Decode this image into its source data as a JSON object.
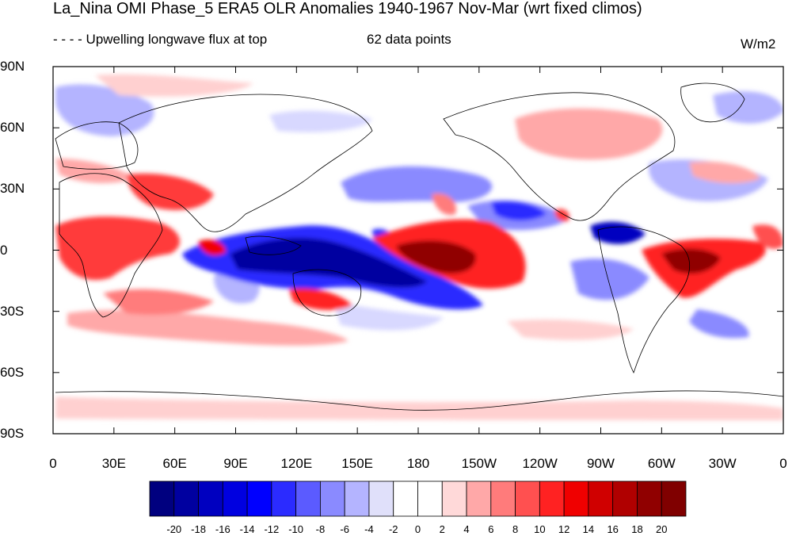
{
  "header": {
    "title": "La_Nina OMI Phase_5 ERA5 OLR Anomalies 1940-1967 Nov-Mar (wrt fixed climos)",
    "subtitle_left": "- - - - Upwelling longwave flux at top",
    "subtitle_center": "62 data points",
    "units": "W/m2"
  },
  "map": {
    "projection": "cylindrical-equidistant",
    "y_tick_labels": [
      "90N",
      "60N",
      "30N",
      "0",
      "30S",
      "60S",
      "90S"
    ],
    "x_tick_labels": [
      "0",
      "30E",
      "60E",
      "90E",
      "120E",
      "150E",
      "180",
      "150W",
      "120W",
      "90W",
      "60W",
      "30W",
      "0"
    ],
    "colors": {
      "strong_negative": "#0000a0",
      "negative": "#5b5bff",
      "weak_negative": "#d8d8ff",
      "weak_positive": "#ffd0d0",
      "positive": "#ff3a3a",
      "strong_positive": "#8b0000"
    }
  },
  "colorbar": {
    "labels": [
      "-20",
      "-18",
      "-16",
      "-14",
      "-12",
      "-10",
      "-8",
      "-6",
      "-4",
      "-2",
      "0",
      "2",
      "4",
      "6",
      "8",
      "10",
      "12",
      "14",
      "16",
      "18",
      "20"
    ],
    "colors": [
      "#00007f",
      "#0000a0",
      "#0000c0",
      "#0000e0",
      "#0000ff",
      "#2b2bff",
      "#5b5bff",
      "#8a8aff",
      "#b4b4ff",
      "#e0e0fa",
      "#ffffff",
      "#ffffff",
      "#ffd9d9",
      "#ffa8a8",
      "#ff7b7b",
      "#ff5050",
      "#ff2222",
      "#f00000",
      "#d00000",
      "#b00000",
      "#900000",
      "#800000"
    ]
  }
}
